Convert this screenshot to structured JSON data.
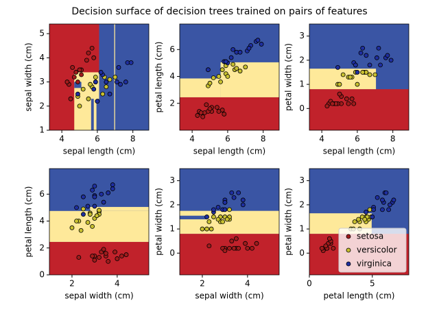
{
  "title": "Decision surface of decision trees trained on pairs of features",
  "chart_data": [
    {
      "type": "scatter",
      "xlabel": "sepal length (cm)",
      "ylabel": "sepal width (cm)",
      "xlim": [
        3.3,
        8.9
      ],
      "ylim": [
        1.0,
        5.4
      ],
      "xticks": [
        4,
        6,
        8
      ],
      "yticks": [
        1,
        2,
        3,
        4,
        5
      ],
      "regions": [
        {
          "color": "#c1222b",
          "x": [
            3.3,
            6.1
          ],
          "y": [
            1.0,
            5.4
          ]
        },
        {
          "color": "#3a55a4",
          "x": [
            6.1,
            8.9
          ],
          "y": [
            1.0,
            5.4
          ]
        },
        {
          "color": "#fee99a",
          "x": [
            4.7,
            6.1
          ],
          "y": [
            1.0,
            3.4
          ]
        },
        {
          "color": "#3a55a4",
          "x": [
            4.7,
            5.1
          ],
          "y": [
            2.75,
            3.0
          ]
        },
        {
          "color": "#3a55a4",
          "x": [
            5.65,
            5.8
          ],
          "y": [
            1.0,
            2.3
          ]
        },
        {
          "color": "#3a55a4",
          "x": [
            5.95,
            6.1
          ],
          "y": [
            1.0,
            2.3
          ]
        },
        {
          "color": "#fee99a",
          "x": [
            6.95,
            7.0
          ],
          "y": [
            1.0,
            5.4
          ]
        }
      ],
      "series": [
        {
          "color": "#a01c1c",
          "x": [
            5.1,
            4.9,
            4.7,
            5.4,
            4.4,
            5.8,
            5.7,
            4.3,
            5.1,
            4.8,
            5.5,
            4.5,
            5.0,
            4.6
          ],
          "y": [
            3.5,
            3.0,
            3.2,
            3.9,
            2.9,
            4.0,
            4.4,
            3.0,
            3.3,
            3.4,
            4.2,
            2.3,
            3.5,
            3.6
          ]
        },
        {
          "color": "#c8c030",
          "x": [
            7.0,
            6.4,
            5.5,
            6.5,
            5.7,
            4.9,
            5.2,
            5.0,
            5.9,
            6.0,
            5.6,
            6.7,
            5.9,
            6.3
          ],
          "y": [
            3.2,
            3.2,
            2.3,
            2.8,
            2.8,
            2.4,
            2.7,
            2.0,
            3.0,
            2.2,
            2.9,
            3.1,
            3.2,
            2.5
          ]
        },
        {
          "color": "#1f2fa0",
          "x": [
            6.3,
            5.8,
            7.1,
            6.5,
            7.6,
            4.9,
            7.3,
            6.7,
            7.2,
            7.7,
            6.0,
            7.9,
            6.2,
            5.9
          ],
          "y": [
            3.3,
            2.7,
            3.0,
            3.0,
            3.0,
            2.5,
            2.9,
            2.5,
            3.6,
            3.8,
            2.2,
            3.8,
            3.4,
            3.0
          ]
        }
      ]
    },
    {
      "type": "scatter",
      "xlabel": "sepal length (cm)",
      "ylabel": "petal length (cm)",
      "xlim": [
        3.3,
        8.9
      ],
      "ylim": [
        0.0,
        7.9
      ],
      "xticks": [
        4,
        6,
        8
      ],
      "yticks": [
        2,
        4,
        6
      ],
      "regions": [
        {
          "color": "#3a55a4",
          "x": [
            3.3,
            8.9
          ],
          "y": [
            0.0,
            7.9
          ]
        },
        {
          "color": "#c1222b",
          "x": [
            3.3,
            8.9
          ],
          "y": [
            0.0,
            2.45
          ]
        },
        {
          "color": "#fee99a",
          "x": [
            3.3,
            5.6
          ],
          "y": [
            2.45,
            3.85
          ]
        },
        {
          "color": "#fee99a",
          "x": [
            5.6,
            8.9
          ],
          "y": [
            2.45,
            5.05
          ]
        }
      ],
      "series": [
        {
          "color": "#a01c1c",
          "x": [
            5.1,
            4.9,
            4.7,
            5.4,
            4.4,
            5.8,
            5.7,
            4.3,
            5.1,
            4.8,
            5.5,
            4.5,
            5.0,
            4.6
          ],
          "y": [
            1.4,
            1.4,
            1.3,
            1.7,
            1.4,
            1.2,
            1.5,
            1.1,
            1.7,
            1.9,
            1.4,
            1.3,
            1.6,
            1.0
          ]
        },
        {
          "color": "#c8c030",
          "x": [
            7.0,
            6.4,
            5.5,
            6.5,
            5.7,
            4.9,
            5.2,
            5.0,
            5.9,
            6.0,
            5.6,
            6.7,
            5.9,
            6.3
          ],
          "y": [
            4.7,
            4.5,
            4.0,
            4.6,
            4.5,
            3.3,
            3.9,
            3.5,
            4.2,
            4.0,
            3.6,
            4.4,
            4.8,
            4.9
          ]
        },
        {
          "color": "#1f2fa0",
          "x": [
            6.3,
            5.8,
            7.1,
            6.5,
            7.6,
            4.9,
            7.3,
            6.7,
            7.2,
            7.7,
            6.0,
            7.9,
            6.2,
            5.9
          ],
          "y": [
            6.0,
            5.1,
            5.9,
            5.8,
            6.6,
            4.5,
            6.3,
            5.8,
            6.1,
            6.7,
            5.0,
            6.4,
            5.4,
            5.1
          ]
        }
      ]
    },
    {
      "type": "scatter",
      "xlabel": "sepal length (cm)",
      "ylabel": "petal width (cm)",
      "xlim": [
        3.3,
        8.9
      ],
      "ylim": [
        -0.9,
        3.5
      ],
      "xticks": [
        4,
        6,
        8
      ],
      "yticks": [
        0,
        1,
        2,
        3
      ],
      "regions": [
        {
          "color": "#3a55a4",
          "x": [
            3.3,
            8.9
          ],
          "y": [
            -0.9,
            3.5
          ]
        },
        {
          "color": "#c1222b",
          "x": [
            3.3,
            8.9
          ],
          "y": [
            -0.9,
            0.8
          ]
        },
        {
          "color": "#fee99a",
          "x": [
            3.3,
            7.05
          ],
          "y": [
            0.8,
            1.65
          ]
        }
      ],
      "series": [
        {
          "color": "#a01c1c",
          "x": [
            5.1,
            4.9,
            4.7,
            5.4,
            4.4,
            5.8,
            5.7,
            4.3,
            5.1,
            4.8,
            5.5,
            4.5,
            5.0,
            4.6
          ],
          "y": [
            0.2,
            0.2,
            0.2,
            0.4,
            0.2,
            0.2,
            0.4,
            0.1,
            0.5,
            0.2,
            0.2,
            0.3,
            0.6,
            0.2
          ]
        },
        {
          "color": "#c8c030",
          "x": [
            7.0,
            6.4,
            5.5,
            6.5,
            5.7,
            4.9,
            5.2,
            5.0,
            5.9,
            6.0,
            5.6,
            6.7,
            5.9,
            6.3
          ],
          "y": [
            1.4,
            1.5,
            1.3,
            1.5,
            1.3,
            1.0,
            1.4,
            1.0,
            1.5,
            1.0,
            1.3,
            1.4,
            1.8,
            1.5
          ]
        },
        {
          "color": "#1f2fa0",
          "x": [
            6.3,
            5.8,
            7.1,
            6.5,
            7.6,
            4.9,
            7.3,
            6.7,
            7.2,
            7.7,
            6.0,
            7.9,
            6.2,
            5.9
          ],
          "y": [
            2.5,
            1.9,
            2.1,
            2.2,
            2.1,
            1.7,
            1.8,
            1.8,
            2.5,
            2.2,
            1.5,
            2.0,
            2.3,
            1.8
          ]
        }
      ]
    },
    {
      "type": "scatter",
      "xlabel": "sepal width (cm)",
      "ylabel": "petal length (cm)",
      "xlim": [
        1.0,
        5.4
      ],
      "ylim": [
        0.0,
        7.9
      ],
      "xticks": [
        2,
        4
      ],
      "yticks": [
        0,
        2,
        4,
        6
      ],
      "regions": [
        {
          "color": "#3a55a4",
          "x": [
            1.0,
            5.4
          ],
          "y": [
            0.0,
            7.9
          ]
        },
        {
          "color": "#c1222b",
          "x": [
            1.0,
            5.4
          ],
          "y": [
            0.0,
            2.45
          ]
        },
        {
          "color": "#fee99a",
          "x": [
            1.0,
            5.4
          ],
          "y": [
            2.45,
            4.75
          ]
        },
        {
          "color": "#fee99a",
          "x": [
            2.8,
            5.4
          ],
          "y": [
            4.75,
            5.05
          ]
        }
      ],
      "series": [
        {
          "color": "#a01c1c",
          "x": [
            3.5,
            3.0,
            3.2,
            3.9,
            2.9,
            4.0,
            4.4,
            3.0,
            3.3,
            3.4,
            4.2,
            2.3,
            3.5,
            3.6
          ],
          "y": [
            1.4,
            1.4,
            1.3,
            1.7,
            1.4,
            1.2,
            1.5,
            1.1,
            1.7,
            1.9,
            1.4,
            1.3,
            1.6,
            1.0
          ]
        },
        {
          "color": "#c8c030",
          "x": [
            3.2,
            3.2,
            2.3,
            2.8,
            2.8,
            2.4,
            2.7,
            2.0,
            3.0,
            2.2,
            2.9,
            3.1,
            3.2,
            2.5
          ],
          "y": [
            4.7,
            4.5,
            4.0,
            4.6,
            4.5,
            3.3,
            3.9,
            3.5,
            4.2,
            4.0,
            3.6,
            4.4,
            4.8,
            4.9
          ]
        },
        {
          "color": "#1f2fa0",
          "x": [
            3.3,
            2.7,
            3.0,
            3.0,
            3.0,
            2.5,
            2.9,
            2.5,
            3.6,
            3.8,
            2.2,
            3.8,
            3.4,
            3.0
          ],
          "y": [
            6.0,
            5.1,
            5.9,
            5.8,
            6.6,
            4.5,
            6.3,
            5.8,
            6.1,
            6.7,
            5.0,
            6.4,
            5.4,
            5.1
          ]
        }
      ]
    },
    {
      "type": "scatter",
      "xlabel": "sepal width (cm)",
      "ylabel": "petal width (cm)",
      "xlim": [
        1.0,
        5.4
      ],
      "ylim": [
        -0.9,
        3.5
      ],
      "xticks": [
        2,
        4
      ],
      "yticks": [
        0,
        1,
        2,
        3
      ],
      "regions": [
        {
          "color": "#3a55a4",
          "x": [
            1.0,
            5.4
          ],
          "y": [
            -0.9,
            3.5
          ]
        },
        {
          "color": "#c1222b",
          "x": [
            1.0,
            5.4
          ],
          "y": [
            -0.9,
            0.8
          ]
        },
        {
          "color": "#fee99a",
          "x": [
            1.0,
            5.4
          ],
          "y": [
            0.8,
            1.75
          ]
        },
        {
          "color": "#3a55a4",
          "x": [
            1.0,
            2.2
          ],
          "y": [
            1.4,
            1.55
          ]
        }
      ],
      "series": [
        {
          "color": "#a01c1c",
          "x": [
            3.5,
            3.0,
            3.2,
            3.9,
            2.9,
            4.0,
            4.4,
            3.0,
            3.3,
            3.4,
            4.2,
            2.3,
            3.5,
            3.6
          ],
          "y": [
            0.2,
            0.2,
            0.2,
            0.4,
            0.2,
            0.2,
            0.4,
            0.1,
            0.5,
            0.2,
            0.2,
            0.3,
            0.6,
            0.2
          ]
        },
        {
          "color": "#c8c030",
          "x": [
            3.2,
            3.2,
            2.3,
            2.8,
            2.8,
            2.4,
            2.7,
            2.0,
            3.0,
            2.2,
            2.9,
            3.1,
            3.2,
            2.5
          ],
          "y": [
            1.4,
            1.5,
            1.3,
            1.5,
            1.3,
            1.0,
            1.4,
            1.0,
            1.5,
            1.0,
            1.3,
            1.4,
            1.8,
            1.5
          ]
        },
        {
          "color": "#1f2fa0",
          "x": [
            3.3,
            2.7,
            3.0,
            3.0,
            3.0,
            2.5,
            2.9,
            2.5,
            3.6,
            3.8,
            2.2,
            3.8,
            3.4,
            3.0
          ],
          "y": [
            2.5,
            1.9,
            2.1,
            2.2,
            2.1,
            1.7,
            1.8,
            1.8,
            2.5,
            2.2,
            1.5,
            2.0,
            2.3,
            1.8
          ]
        }
      ]
    },
    {
      "type": "scatter",
      "xlabel": "petal length (cm)",
      "ylabel": "petal width (cm)",
      "xlim": [
        0.0,
        7.9
      ],
      "ylim": [
        -0.9,
        3.5
      ],
      "xticks": [
        0,
        5
      ],
      "yticks": [
        0,
        1,
        2,
        3
      ],
      "legend": "lower right",
      "regions": [
        {
          "color": "#3a55a4",
          "x": [
            0.0,
            7.9
          ],
          "y": [
            -0.9,
            3.5
          ]
        },
        {
          "color": "#c1222b",
          "x": [
            0.0,
            7.9
          ],
          "y": [
            -0.9,
            0.8
          ]
        },
        {
          "color": "#fee99a",
          "x": [
            0.0,
            4.95
          ],
          "y": [
            0.8,
            1.65
          ]
        }
      ],
      "series": [
        {
          "name": "setosa",
          "color": "#a01c1c",
          "x": [
            1.4,
            1.4,
            1.3,
            1.7,
            1.4,
            1.2,
            1.5,
            1.1,
            1.7,
            1.9,
            1.4,
            1.3,
            1.6,
            1.0
          ],
          "y": [
            0.2,
            0.2,
            0.2,
            0.4,
            0.2,
            0.2,
            0.4,
            0.1,
            0.5,
            0.2,
            0.2,
            0.3,
            0.6,
            0.2
          ]
        },
        {
          "name": "versicolor",
          "color": "#c8c030",
          "x": [
            4.7,
            4.5,
            4.0,
            4.6,
            4.5,
            3.3,
            3.9,
            3.5,
            4.2,
            4.0,
            3.6,
            4.4,
            4.8,
            4.9
          ],
          "y": [
            1.4,
            1.5,
            1.3,
            1.5,
            1.3,
            1.0,
            1.4,
            1.0,
            1.5,
            1.0,
            1.3,
            1.4,
            1.8,
            1.5
          ]
        },
        {
          "name": "virginica",
          "color": "#1f2fa0",
          "x": [
            6.0,
            5.1,
            5.9,
            5.8,
            6.6,
            4.5,
            6.3,
            5.8,
            6.1,
            6.7,
            5.0,
            6.4,
            5.4,
            5.1
          ],
          "y": [
            2.5,
            1.9,
            2.1,
            2.2,
            2.1,
            1.7,
            1.8,
            1.8,
            2.5,
            2.2,
            1.5,
            2.0,
            2.3,
            1.8
          ]
        }
      ]
    }
  ]
}
